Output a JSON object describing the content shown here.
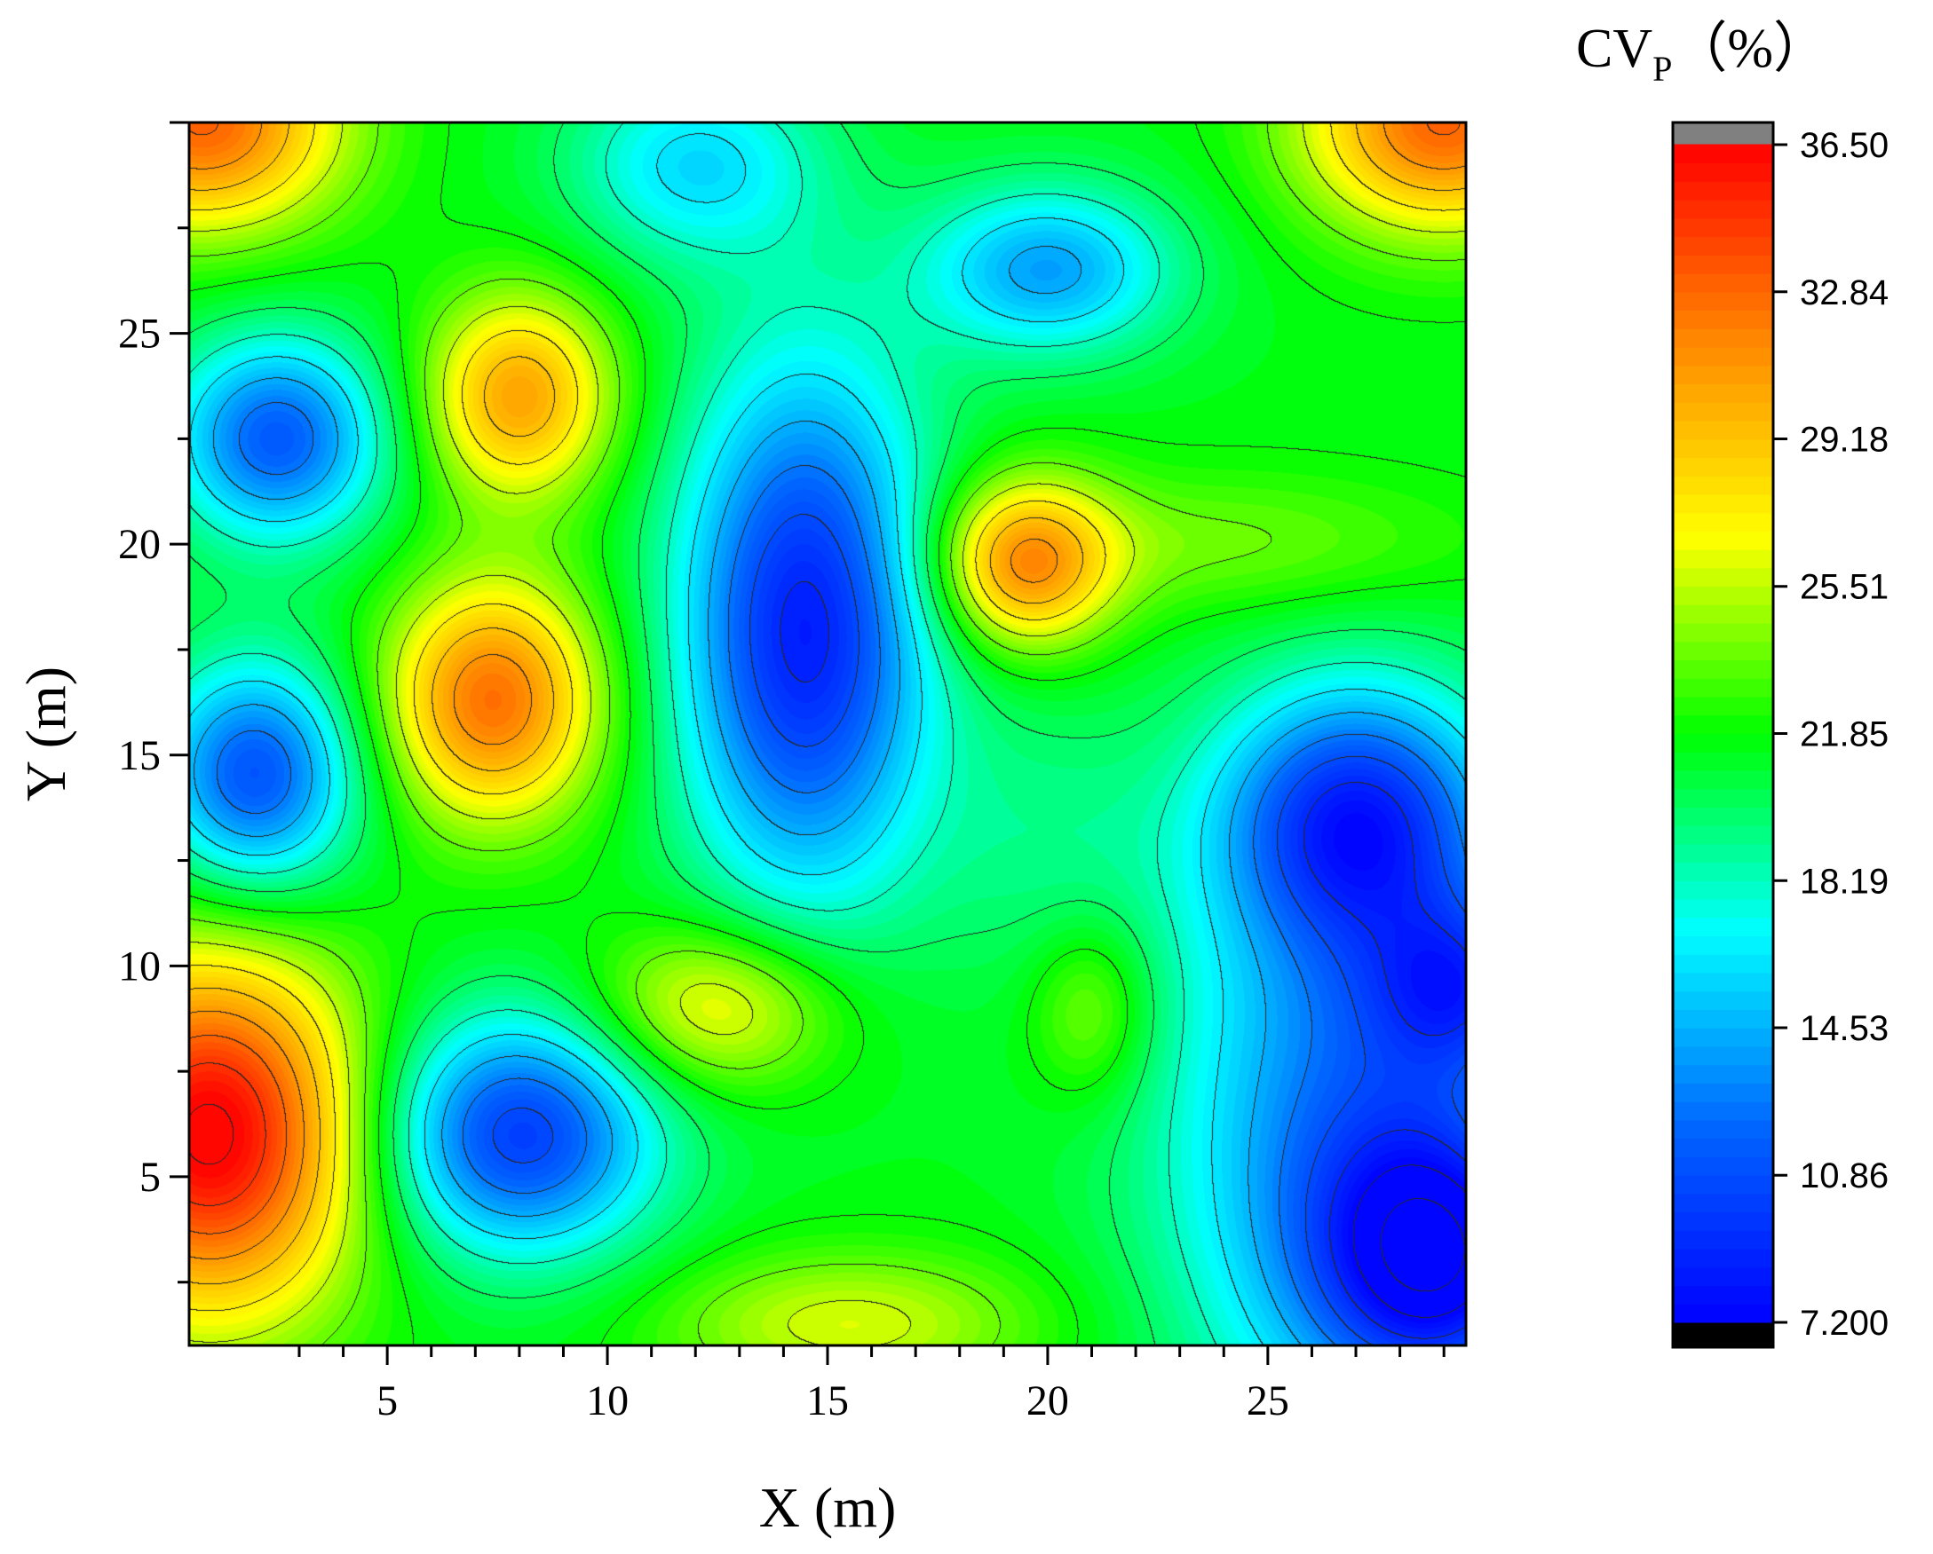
{
  "chart_data": {
    "type": "heatmap",
    "subtype": "filled-contour",
    "xlabel": "X (m)",
    "ylabel": "Y (m)",
    "xlim": [
      0.5,
      29.5
    ],
    "ylim": [
      1,
      30
    ],
    "xticks": [
      5,
      10,
      15,
      20,
      25
    ],
    "yticks": [
      5,
      10,
      15,
      20,
      25
    ],
    "colorbar": {
      "title_main": "CV",
      "title_sub": "P",
      "title_unit": "（%）",
      "min": 7.2,
      "max": 36.5,
      "tick_labels": [
        "36.50",
        "32.84",
        "29.18",
        "25.51",
        "21.85",
        "18.19",
        "14.53",
        "10.86",
        "7.200"
      ],
      "tick_values": [
        36.5,
        32.84,
        29.18,
        25.51,
        21.85,
        18.19,
        14.53,
        10.86,
        7.2
      ],
      "over_color": "#808080",
      "under_color": "#000000",
      "palette": [
        "#0000ff",
        "#0066ff",
        "#00ffff",
        "#00ff00",
        "#ffff00",
        "#ff8800",
        "#ff0000"
      ]
    },
    "background_value": 21.5,
    "features": [
      {
        "x": 1.0,
        "y": 6.0,
        "value": 37.0,
        "sx": 2.4,
        "sy": 3.0
      },
      {
        "x": 0.8,
        "y": 30.0,
        "value": 33.0,
        "sx": 2.2,
        "sy": 1.8
      },
      {
        "x": 29.0,
        "y": 30.0,
        "value": 33.0,
        "sx": 2.2,
        "sy": 1.8
      },
      {
        "x": 7.4,
        "y": 16.3,
        "value": 32.5,
        "sx": 1.7,
        "sy": 2.0
      },
      {
        "x": 8.0,
        "y": 23.5,
        "value": 30.5,
        "sx": 1.5,
        "sy": 1.7
      },
      {
        "x": 19.5,
        "y": 19.5,
        "value": 31.0,
        "sx": 1.4,
        "sy": 1.4
      },
      {
        "x": 24.0,
        "y": 20.0,
        "value": 24.0,
        "sx": 4.0,
        "sy": 1.2
      },
      {
        "x": 12.5,
        "y": 9.0,
        "value": 27.5,
        "sx": 2.0,
        "sy": 1.4
      },
      {
        "x": 21.0,
        "y": 9.0,
        "value": 25.0,
        "sx": 1.0,
        "sy": 1.5
      },
      {
        "x": 15.5,
        "y": 1.5,
        "value": 26.0,
        "sx": 3.0,
        "sy": 1.2
      },
      {
        "x": 14.5,
        "y": 18.0,
        "value": 8.5,
        "sx": 2.0,
        "sy": 4.4
      },
      {
        "x": 2.5,
        "y": 22.5,
        "value": 11.5,
        "sx": 1.7,
        "sy": 1.7
      },
      {
        "x": 2.0,
        "y": 14.5,
        "value": 11.0,
        "sx": 1.6,
        "sy": 1.9
      },
      {
        "x": 8.0,
        "y": 6.0,
        "value": 10.0,
        "sx": 2.2,
        "sy": 2.0
      },
      {
        "x": 27.0,
        "y": 13.5,
        "value": 10.5,
        "sx": 2.2,
        "sy": 2.2
      },
      {
        "x": 29.0,
        "y": 3.0,
        "value": 10.5,
        "sx": 2.0,
        "sy": 2.2
      },
      {
        "x": 27.0,
        "y": 6.0,
        "value": 12.5,
        "sx": 3.0,
        "sy": 5.0
      },
      {
        "x": 20.0,
        "y": 26.5,
        "value": 14.0,
        "sx": 2.0,
        "sy": 1.4
      },
      {
        "x": 12.0,
        "y": 29.0,
        "value": 16.0,
        "sx": 2.0,
        "sy": 1.6
      },
      {
        "x": 29.5,
        "y": 9.5,
        "value": 14.5,
        "sx": 1.5,
        "sy": 1.5
      },
      {
        "x": 20.0,
        "y": 13.0,
        "value": 19.5,
        "sx": 2.0,
        "sy": 2.5
      }
    ]
  }
}
